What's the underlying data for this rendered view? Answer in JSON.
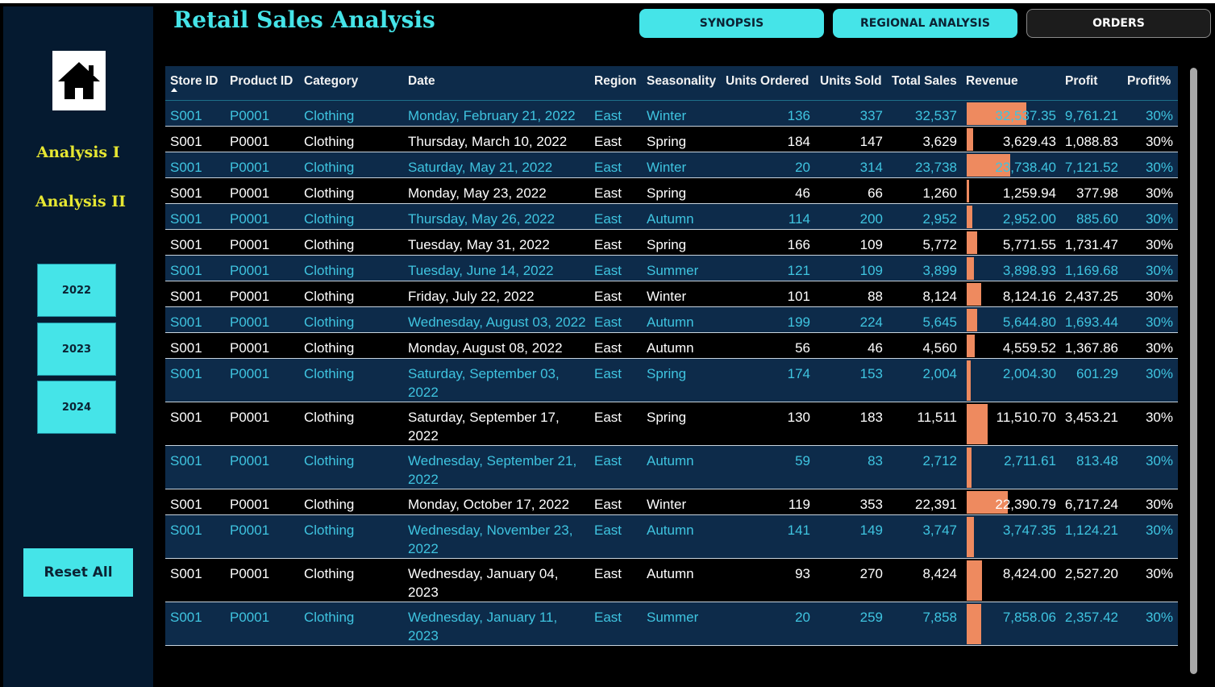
{
  "app": {
    "title": "Retail Sales Analysis"
  },
  "tabs": [
    {
      "label": "SYNOPSIS",
      "active": true
    },
    {
      "label": "REGIONAL ANALYSIS",
      "active": true
    },
    {
      "label": "ORDERS",
      "active": false
    }
  ],
  "sidebar": {
    "home_icon": "home-icon",
    "nav": [
      {
        "label": "Analysis I"
      },
      {
        "label": "Analysis II"
      }
    ],
    "years": [
      {
        "label": "2022"
      },
      {
        "label": "2023"
      },
      {
        "label": "2024"
      }
    ],
    "reset_label": "Reset All"
  },
  "table": {
    "columns": [
      "Store ID",
      "Product ID",
      "Category",
      "Date",
      "Region",
      "Seasonality",
      "Units Ordered",
      "Units Sold",
      "Total Sales",
      "Revenue",
      "Profit",
      "Profit%"
    ],
    "sorted_column": "Store ID",
    "sort_direction": "ascending",
    "revenue_bar_color": "#ee8a5f",
    "rows": [
      [
        "S001",
        "P0001",
        "Clothing",
        "Monday, February 21, 2022",
        "East",
        "Winter",
        "136",
        "337",
        "32,537",
        "32,537.35",
        "9,761.21",
        "30%"
      ],
      [
        "S001",
        "P0001",
        "Clothing",
        "Thursday, March 10, 2022",
        "East",
        "Spring",
        "184",
        "147",
        "3,629",
        "3,629.43",
        "1,088.83",
        "30%"
      ],
      [
        "S001",
        "P0001",
        "Clothing",
        "Saturday, May 21, 2022",
        "East",
        "Winter",
        "20",
        "314",
        "23,738",
        "23,738.40",
        "7,121.52",
        "30%"
      ],
      [
        "S001",
        "P0001",
        "Clothing",
        "Monday, May 23, 2022",
        "East",
        "Spring",
        "46",
        "66",
        "1,260",
        "1,259.94",
        "377.98",
        "30%"
      ],
      [
        "S001",
        "P0001",
        "Clothing",
        "Thursday, May 26, 2022",
        "East",
        "Autumn",
        "114",
        "200",
        "2,952",
        "2,952.00",
        "885.60",
        "30%"
      ],
      [
        "S001",
        "P0001",
        "Clothing",
        "Tuesday, May 31, 2022",
        "East",
        "Spring",
        "166",
        "109",
        "5,772",
        "5,771.55",
        "1,731.47",
        "30%"
      ],
      [
        "S001",
        "P0001",
        "Clothing",
        "Tuesday, June 14, 2022",
        "East",
        "Summer",
        "121",
        "109",
        "3,899",
        "3,898.93",
        "1,169.68",
        "30%"
      ],
      [
        "S001",
        "P0001",
        "Clothing",
        "Friday, July 22, 2022",
        "East",
        "Winter",
        "101",
        "88",
        "8,124",
        "8,124.16",
        "2,437.25",
        "30%"
      ],
      [
        "S001",
        "P0001",
        "Clothing",
        "Wednesday, August 03, 2022",
        "East",
        "Autumn",
        "199",
        "224",
        "5,645",
        "5,644.80",
        "1,693.44",
        "30%"
      ],
      [
        "S001",
        "P0001",
        "Clothing",
        "Monday, August 08, 2022",
        "East",
        "Autumn",
        "56",
        "46",
        "4,560",
        "4,559.52",
        "1,367.86",
        "30%"
      ],
      [
        "S001",
        "P0001",
        "Clothing",
        "Saturday, September 03, 2022",
        "East",
        "Spring",
        "174",
        "153",
        "2,004",
        "2,004.30",
        "601.29",
        "30%"
      ],
      [
        "S001",
        "P0001",
        "Clothing",
        "Saturday, September 17, 2022",
        "East",
        "Spring",
        "130",
        "183",
        "11,511",
        "11,510.70",
        "3,453.21",
        "30%"
      ],
      [
        "S001",
        "P0001",
        "Clothing",
        "Wednesday, September 21, 2022",
        "East",
        "Autumn",
        "59",
        "83",
        "2,712",
        "2,711.61",
        "813.48",
        "30%"
      ],
      [
        "S001",
        "P0001",
        "Clothing",
        "Monday, October 17, 2022",
        "East",
        "Winter",
        "119",
        "353",
        "22,391",
        "22,390.79",
        "6,717.24",
        "30%"
      ],
      [
        "S001",
        "P0001",
        "Clothing",
        "Wednesday, November 23, 2022",
        "East",
        "Autumn",
        "141",
        "149",
        "3,747",
        "3,747.35",
        "1,124.21",
        "30%"
      ],
      [
        "S001",
        "P0001",
        "Clothing",
        "Wednesday, January 04, 2023",
        "East",
        "Autumn",
        "93",
        "270",
        "8,424",
        "8,424.00",
        "2,527.20",
        "30%"
      ],
      [
        "S001",
        "P0001",
        "Clothing",
        "Wednesday, January 11, 2023",
        "East",
        "Summer",
        "20",
        "259",
        "7,858",
        "7,858.06",
        "2,357.42",
        "30%"
      ]
    ]
  }
}
